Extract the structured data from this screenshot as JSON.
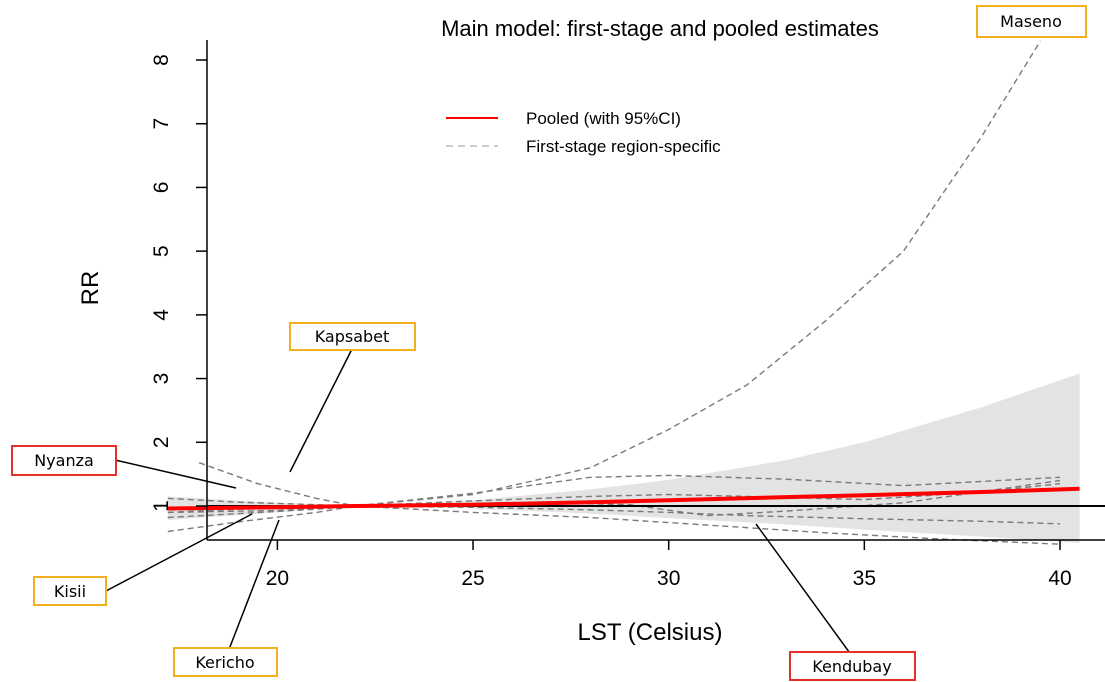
{
  "chart_data": {
    "type": "line",
    "title": "Main model: first-stage and pooled estimates",
    "xlabel": "LST (Celsius)",
    "ylabel": "RR",
    "xlim": [
      17,
      40.5
    ],
    "ylim": [
      1,
      8
    ],
    "x_ticks": [
      "20",
      "25",
      "30",
      "35",
      "40"
    ],
    "y_ticks": [
      "1",
      "2",
      "3",
      "4",
      "5",
      "6",
      "7",
      "8"
    ],
    "reference_line": 1,
    "legend": {
      "placement": "top-center",
      "entries": [
        {
          "label": "Pooled (with 95%CI)",
          "color": "#ff0000",
          "style": "solid"
        },
        {
          "label": "First-stage region-specific",
          "color": "#bbbbbb",
          "style": "dashed"
        }
      ]
    },
    "pooled": {
      "x": [
        17.2,
        20,
        22,
        25,
        28,
        30,
        33,
        35,
        38,
        40.5
      ],
      "y": [
        0.96,
        0.98,
        1.0,
        1.02,
        1.06,
        1.09,
        1.14,
        1.17,
        1.22,
        1.27
      ],
      "ci_lower": [
        0.78,
        0.9,
        1.0,
        0.96,
        0.88,
        0.81,
        0.71,
        0.63,
        0.52,
        0.42
      ],
      "ci_upper": [
        1.15,
        1.05,
        1.0,
        1.09,
        1.26,
        1.41,
        1.72,
        2.0,
        2.55,
        3.08
      ]
    },
    "regions": [
      {
        "name": "Maseno",
        "x": [
          17.2,
          20,
          22,
          25,
          28,
          30,
          32,
          34,
          36,
          38,
          39.5
        ],
        "y": [
          0.9,
          0.93,
          1.0,
          1.18,
          1.6,
          2.2,
          2.9,
          3.9,
          5.0,
          6.8,
          8.3
        ]
      },
      {
        "name": "Kapsabet",
        "x": [
          18,
          19.5,
          21,
          22,
          25,
          28,
          31,
          34,
          37,
          40
        ],
        "y": [
          1.68,
          1.35,
          1.12,
          1.0,
          0.9,
          0.82,
          0.7,
          0.58,
          0.48,
          0.4
        ]
      },
      {
        "name": "Nyanza",
        "x": [
          17.2,
          19,
          21,
          22,
          25,
          28,
          30,
          32,
          35,
          38,
          40
        ],
        "y": [
          1.12,
          1.06,
          1.02,
          1.0,
          0.98,
          0.94,
          0.9,
          0.85,
          0.8,
          0.76,
          0.72
        ]
      },
      {
        "name": "Kisii",
        "x": [
          17.2,
          19,
          21,
          22,
          25,
          28,
          30,
          33,
          36,
          40
        ],
        "y": [
          0.82,
          0.88,
          0.95,
          1.0,
          1.2,
          1.45,
          1.48,
          1.42,
          1.32,
          1.45
        ]
      },
      {
        "name": "Kericho",
        "x": [
          17.2,
          19,
          21,
          22,
          25,
          28,
          30,
          32,
          35,
          38,
          40
        ],
        "y": [
          0.6,
          0.75,
          0.9,
          1.0,
          1.08,
          1.15,
          1.18,
          1.15,
          1.1,
          1.22,
          1.35
        ]
      },
      {
        "name": "Kendubay",
        "x": [
          17.2,
          19,
          21,
          22,
          25,
          27,
          29,
          31,
          33,
          36,
          40
        ],
        "y": [
          0.9,
          0.95,
          0.98,
          1.0,
          1.0,
          1.05,
          1.02,
          0.85,
          0.92,
          1.05,
          1.4
        ]
      }
    ]
  },
  "callouts": [
    {
      "label": "Maseno",
      "border": "#f2b01e"
    },
    {
      "label": "Kapsabet",
      "border": "#f2b01e"
    },
    {
      "label": "Nyanza",
      "border": "#e8302a"
    },
    {
      "label": "Kisii",
      "border": "#f2b01e"
    },
    {
      "label": "Kericho",
      "border": "#f2b01e"
    },
    {
      "label": "Kendubay",
      "border": "#e8302a"
    }
  ],
  "colors": {
    "pooled_line": "#ff0000",
    "ci_band": "#e3e3e3",
    "region_lines": "#7a7a7a",
    "legend_dash": "#bbbbbb"
  }
}
